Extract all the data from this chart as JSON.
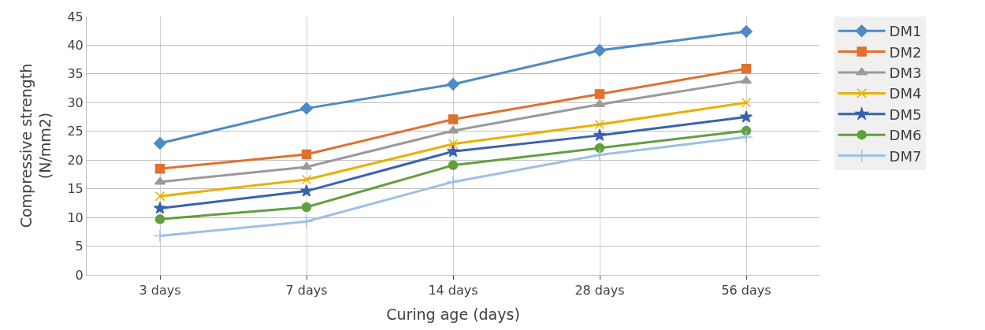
{
  "chart_data": {
    "type": "line",
    "xlabel": "Curing age (days)",
    "ylabel": "Compressive strength\n(N/mm2)",
    "categories": [
      "3 days",
      "7 days",
      "14 days",
      "28 days",
      "56 days"
    ],
    "ylim": [
      0,
      45
    ],
    "yticks": [
      0,
      5,
      10,
      15,
      20,
      25,
      30,
      35,
      40,
      45
    ],
    "grid": true,
    "legend": "right",
    "series": [
      {
        "name": "DM1",
        "color": "#4f8bc4",
        "marker": "diamond",
        "values": [
          22.9,
          29.0,
          33.2,
          39.1,
          42.4
        ]
      },
      {
        "name": "DM2",
        "color": "#e0702d",
        "marker": "square",
        "values": [
          18.5,
          21.0,
          27.1,
          31.5,
          35.9
        ]
      },
      {
        "name": "DM3",
        "color": "#9a9a9a",
        "marker": "triangle",
        "values": [
          16.2,
          18.8,
          25.1,
          29.7,
          33.8
        ]
      },
      {
        "name": "DM4",
        "color": "#eab000",
        "marker": "cross",
        "values": [
          13.7,
          16.6,
          22.8,
          26.2,
          30.0
        ]
      },
      {
        "name": "DM5",
        "color": "#3a62b0",
        "marker": "star",
        "values": [
          11.6,
          14.6,
          21.5,
          24.3,
          27.5
        ]
      },
      {
        "name": "DM6",
        "color": "#62a03e",
        "marker": "circle",
        "values": [
          9.7,
          11.8,
          19.1,
          22.1,
          25.1
        ]
      },
      {
        "name": "DM7",
        "color": "#9dc0e6",
        "marker": "plus",
        "values": [
          6.8,
          9.3,
          16.2,
          20.9,
          24.0
        ]
      }
    ]
  }
}
